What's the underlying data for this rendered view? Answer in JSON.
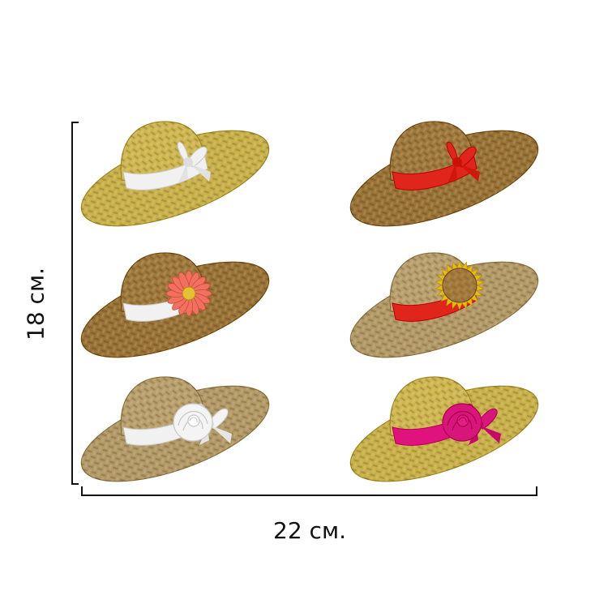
{
  "dimensions": {
    "width_label": "22 см.",
    "height_label": "18 см."
  },
  "colors": {
    "straw_yellow": "#c9b14a",
    "straw_brown": "#9a7336",
    "straw_tan": "#b39a66",
    "ribbon_white": "#f1f1f1",
    "ribbon_red": "#e0251d",
    "ribbon_magenta": "#e0127e",
    "flower_salmon": "#f2705f",
    "sunflower_petal": "#e7bb12",
    "sunflower_center": "#a47a3c",
    "rose_white": "#f4f4f4",
    "rose_magenta": "#d8157a"
  },
  "hats": [
    {
      "id": "hat-1",
      "straw": "straw_yellow",
      "band": "ribbon_white",
      "decoration": "bow",
      "decoration_color": "ribbon_white"
    },
    {
      "id": "hat-2",
      "straw": "straw_brown",
      "band": "ribbon_red",
      "decoration": "bow",
      "decoration_color": "ribbon_red"
    },
    {
      "id": "hat-3",
      "straw": "straw_brown",
      "band": "ribbon_white",
      "decoration": "daisy",
      "decoration_color": "flower_salmon"
    },
    {
      "id": "hat-4",
      "straw": "straw_tan",
      "band": "ribbon_red",
      "decoration": "sunflower",
      "decoration_color": "sunflower_petal"
    },
    {
      "id": "hat-5",
      "straw": "straw_tan",
      "band": "ribbon_white",
      "decoration": "rose",
      "decoration_color": "rose_white"
    },
    {
      "id": "hat-6",
      "straw": "straw_yellow",
      "band": "ribbon_magenta",
      "decoration": "rose",
      "decoration_color": "rose_magenta"
    }
  ]
}
